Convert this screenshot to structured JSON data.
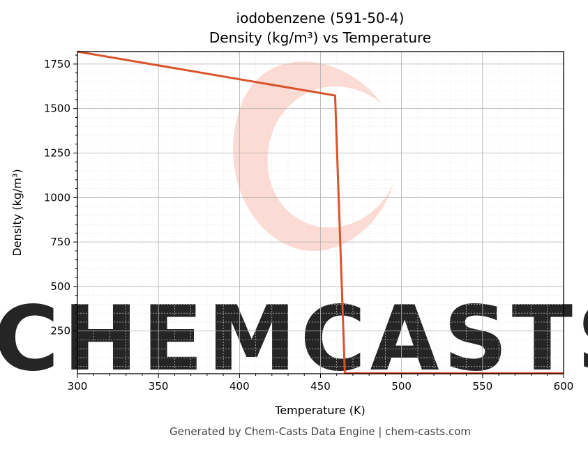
{
  "chart_data": {
    "type": "line",
    "title": "iodobenzene (591-50-4)",
    "subtitle": "Density (kg/m³) vs Temperature",
    "xlabel": "Temperature (K)",
    "ylabel": "Density (kg/m³)",
    "xlim": [
      300,
      600
    ],
    "ylim": [
      10,
      1820
    ],
    "x_ticks": [
      300,
      350,
      400,
      450,
      500,
      550,
      600
    ],
    "y_ticks": [
      250,
      500,
      750,
      1000,
      1250,
      1500,
      1750
    ],
    "grid": true,
    "line_color": "#d9532b",
    "series": [
      {
        "x": [
          300,
          459,
          465,
          600
        ],
        "y": [
          1820,
          1573,
          12,
          12
        ]
      }
    ]
  },
  "watermark": {
    "text": "CHEMCASTS",
    "color": "#fbd5cc"
  },
  "footer": "Generated by Chem-Casts Data Engine | chem-casts.com"
}
